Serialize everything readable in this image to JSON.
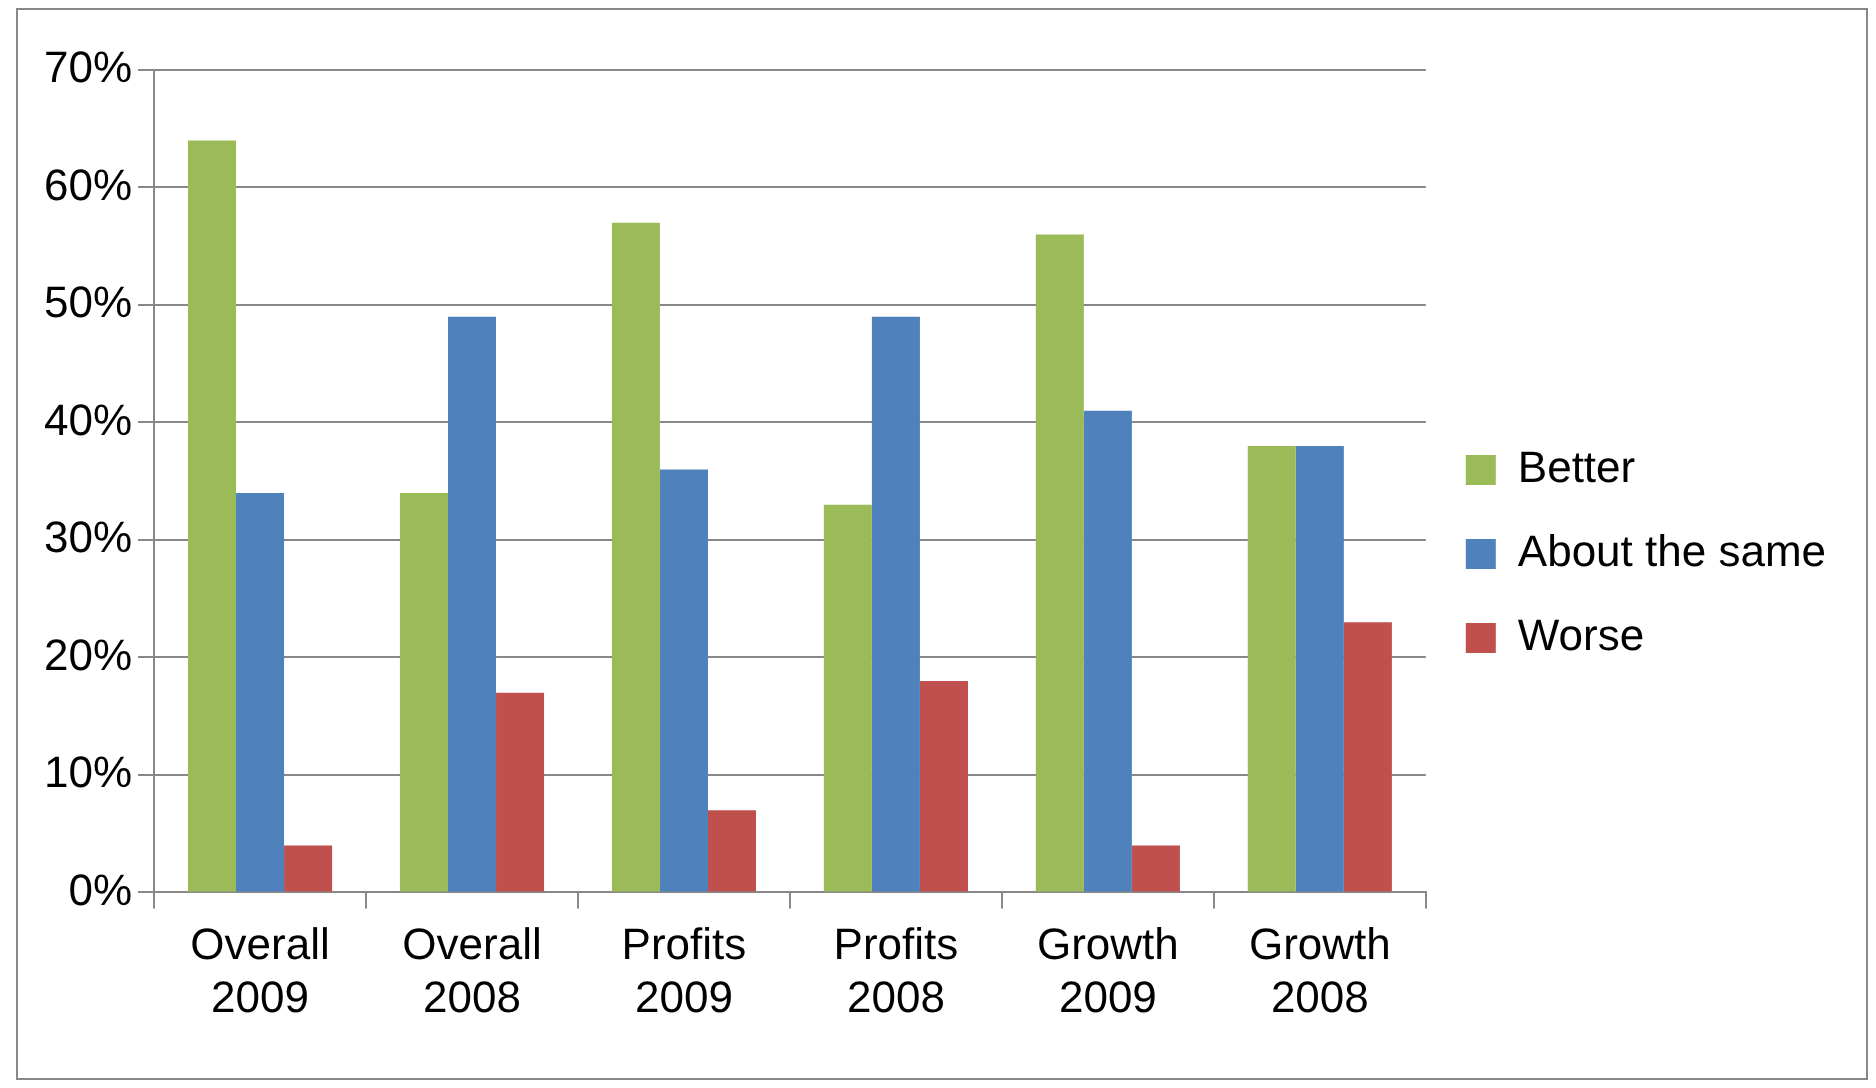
{
  "chart_data": {
    "type": "bar",
    "categories": [
      "Overall 2009",
      "Overall 2008",
      "Profits 2009",
      "Profits 2008",
      "Growth 2009",
      "Growth 2008"
    ],
    "series": [
      {
        "name": "Better",
        "color": "#9bbb59",
        "values": [
          64,
          34,
          57,
          33,
          56,
          38
        ]
      },
      {
        "name": "About the same",
        "color": "#4f81bd",
        "values": [
          34,
          49,
          36,
          49,
          41,
          38
        ]
      },
      {
        "name": "Worse",
        "color": "#c0504d",
        "values": [
          4,
          17,
          7,
          18,
          4,
          23
        ]
      }
    ],
    "ylim": [
      0,
      70
    ],
    "yticks": [
      {
        "value": 0,
        "label": "0%"
      },
      {
        "value": 10,
        "label": "10%"
      },
      {
        "value": 20,
        "label": "20%"
      },
      {
        "value": 30,
        "label": "30%"
      },
      {
        "value": 40,
        "label": "40%"
      },
      {
        "value": 50,
        "label": "50%"
      },
      {
        "value": 60,
        "label": "60%"
      },
      {
        "value": 70,
        "label": "70%"
      }
    ],
    "grid": "y",
    "legend": "right"
  }
}
